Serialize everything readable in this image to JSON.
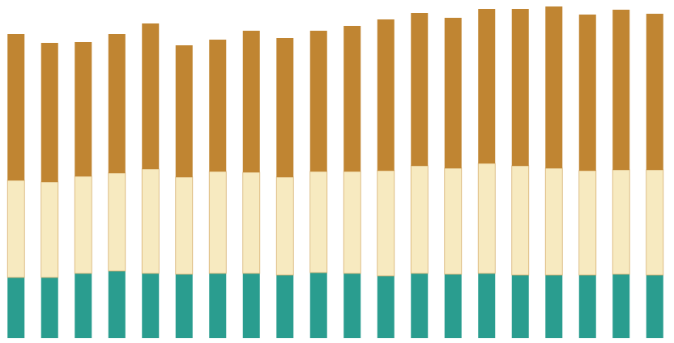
{
  "chart_data": {
    "type": "stacked_bar",
    "categories": [
      null,
      null,
      null,
      null,
      null,
      null,
      null,
      null,
      null,
      null,
      null,
      null,
      null,
      null,
      null,
      null,
      null,
      null,
      null,
      null
    ],
    "series": [
      {
        "color": "#2a9d8f",
        "values": [
          75,
          75,
          80,
          83,
          80,
          79,
          80,
          80,
          78,
          81,
          80,
          77,
          80,
          79,
          80,
          78,
          78,
          78,
          79,
          78
        ]
      },
      {
        "color": "#f7eac0",
        "values": [
          120,
          118,
          120,
          121,
          129,
          120,
          126,
          125,
          121,
          125,
          126,
          130,
          133,
          131,
          136,
          135,
          132,
          129,
          129,
          130
        ]
      },
      {
        "color": "#c08532",
        "values": [
          181,
          172,
          166,
          172,
          180,
          163,
          163,
          175,
          172,
          174,
          180,
          187,
          189,
          186,
          191,
          194,
          200,
          193,
          198,
          193
        ]
      }
    ],
    "ylim": [
      0,
      418
    ]
  }
}
